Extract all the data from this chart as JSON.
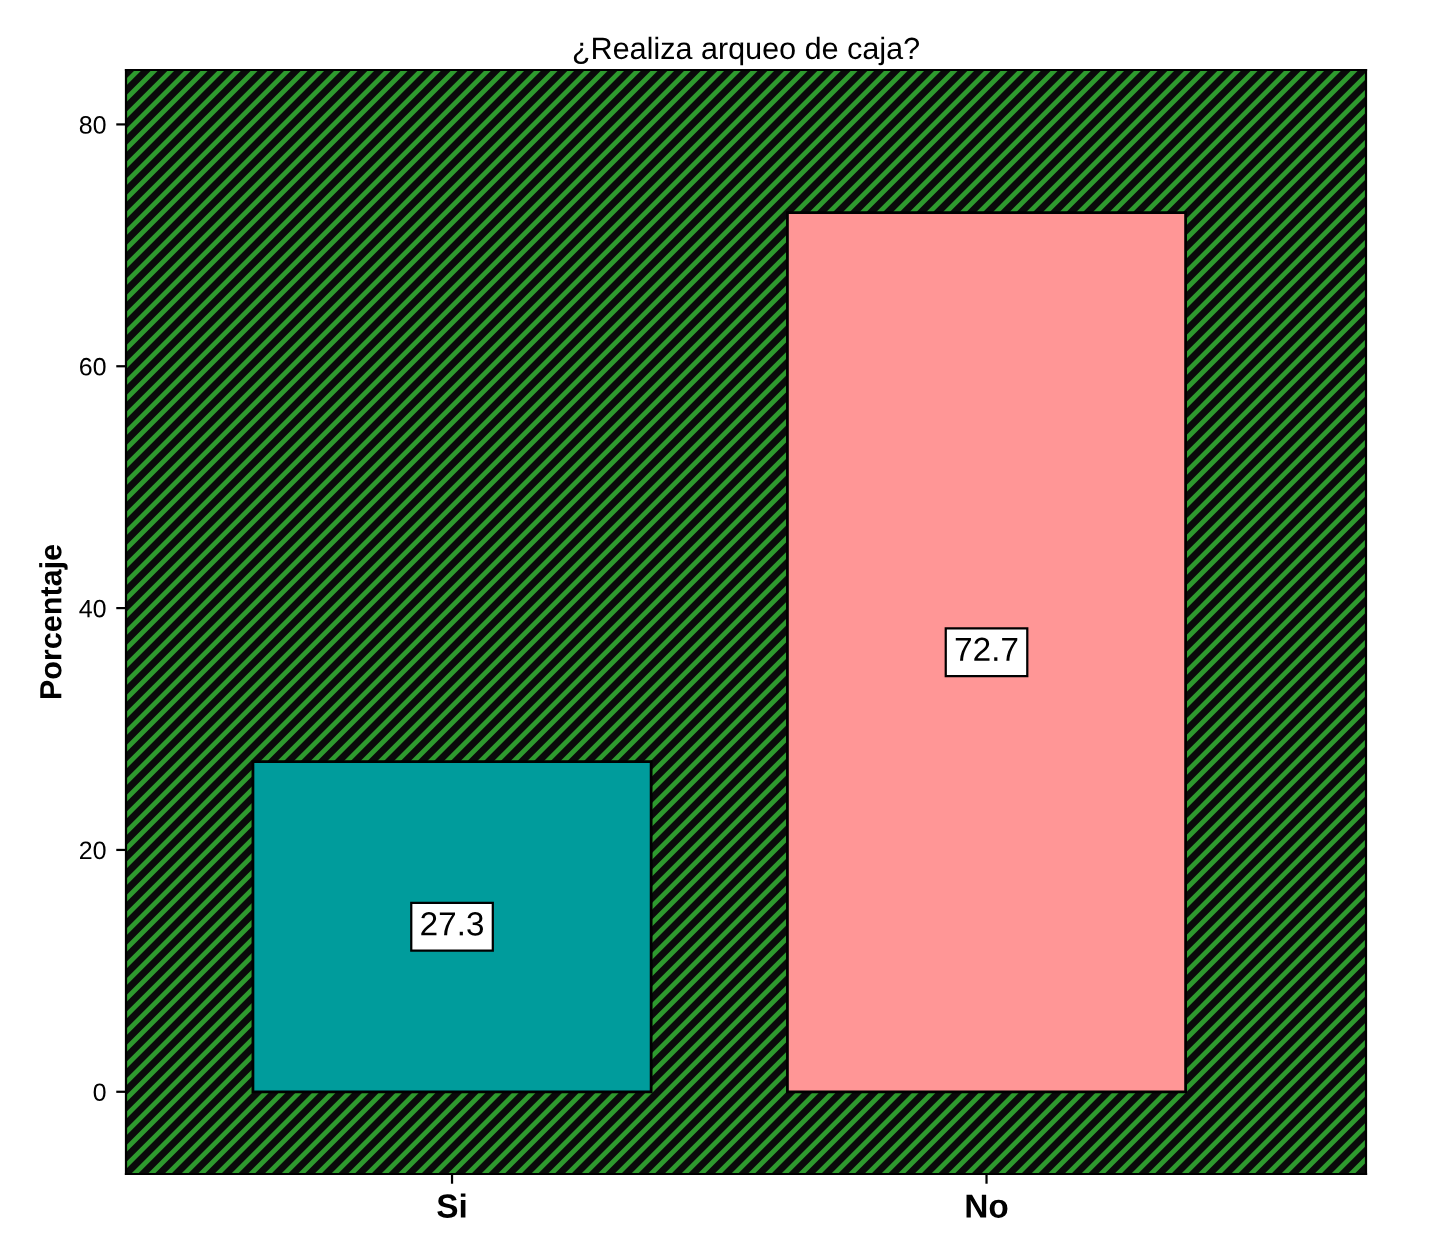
{
  "chart_data": {
    "type": "bar",
    "title": "¿Realiza arqueo de caja?",
    "ylabel": "Porcentaje",
    "categories": [
      "Si",
      "No"
    ],
    "values": [
      27.3,
      72.7
    ],
    "colors": [
      "#009c9c",
      "#ff9696"
    ],
    "ylim": [
      -6.8,
      84.5
    ],
    "yticks": [
      0,
      20,
      40,
      60,
      80
    ],
    "data_labels": true,
    "grid": false
  }
}
